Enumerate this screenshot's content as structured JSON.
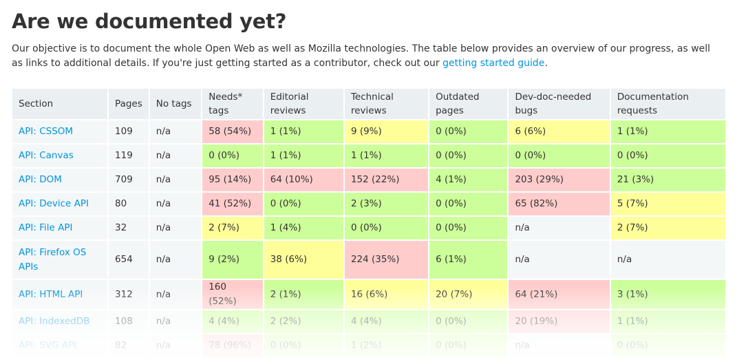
{
  "title": "Are we documented yet?",
  "intro": {
    "text_before": "Our objective is to document the whole Open Web as well as Mozilla technologies. The table below provides an overview of our progress, as well as links to additional details. If you're just getting started as a contributor, check out our ",
    "link_text": "getting started guide",
    "text_after": "."
  },
  "table": {
    "headers": [
      "Section",
      "Pages",
      "No tags",
      "Needs* tags",
      "Editorial reviews",
      "Technical reviews",
      "Outdated pages",
      "Dev-doc-needed bugs",
      "Documentation requests"
    ],
    "rows": [
      {
        "section": "API: CSSOM",
        "pages": "109",
        "notags": "n/a",
        "cells": [
          [
            "58 (54%)",
            "red"
          ],
          [
            "1 (1%)",
            "green"
          ],
          [
            "9 (9%)",
            "yellow"
          ],
          [
            "0 (0%)",
            "green"
          ],
          [
            "6 (6%)",
            "yellow"
          ],
          [
            "1 (1%)",
            "green"
          ]
        ]
      },
      {
        "section": "API: Canvas",
        "pages": "119",
        "notags": "n/a",
        "cells": [
          [
            "0 (0%)",
            "green"
          ],
          [
            "1 (1%)",
            "green"
          ],
          [
            "1 (1%)",
            "green"
          ],
          [
            "0 (0%)",
            "green"
          ],
          [
            "0 (0%)",
            "green"
          ],
          [
            "0 (0%)",
            "green"
          ]
        ]
      },
      {
        "section": "API: DOM",
        "pages": "709",
        "notags": "n/a",
        "cells": [
          [
            "95 (14%)",
            "red"
          ],
          [
            "64 (10%)",
            "red"
          ],
          [
            "152 (22%)",
            "red"
          ],
          [
            "4 (1%)",
            "green"
          ],
          [
            "203 (29%)",
            "red"
          ],
          [
            "21 (3%)",
            "green"
          ]
        ]
      },
      {
        "section": "API: Device API",
        "pages": "80",
        "notags": "n/a",
        "cells": [
          [
            "41 (52%)",
            "red"
          ],
          [
            "0 (0%)",
            "green"
          ],
          [
            "2 (3%)",
            "green"
          ],
          [
            "0 (0%)",
            "green"
          ],
          [
            "65 (82%)",
            "red"
          ],
          [
            "5 (7%)",
            "yellow"
          ]
        ]
      },
      {
        "section": "API: File API",
        "pages": "32",
        "notags": "n/a",
        "cells": [
          [
            "2 (7%)",
            "yellow"
          ],
          [
            "1 (4%)",
            "green"
          ],
          [
            "0 (0%)",
            "green"
          ],
          [
            "0 (0%)",
            "green"
          ],
          [
            "n/a",
            "plain"
          ],
          [
            "2 (7%)",
            "yellow"
          ]
        ]
      },
      {
        "section": "API: Firefox OS APIs",
        "pages": "654",
        "notags": "n/a",
        "tall": true,
        "cells": [
          [
            "9 (2%)",
            "green"
          ],
          [
            "38 (6%)",
            "yellow"
          ],
          [
            "224 (35%)",
            "red"
          ],
          [
            "6 (1%)",
            "green"
          ],
          [
            "n/a",
            "plain"
          ],
          [
            "n/a",
            "plain"
          ]
        ]
      },
      {
        "section": "API: HTML API",
        "pages": "312",
        "notags": "n/a",
        "cells": [
          [
            "160 (52%)",
            "red"
          ],
          [
            "2 (1%)",
            "green"
          ],
          [
            "16 (6%)",
            "yellow"
          ],
          [
            "20 (7%)",
            "yellow"
          ],
          [
            "64 (21%)",
            "red"
          ],
          [
            "3 (1%)",
            "green"
          ]
        ]
      },
      {
        "section": "API: IndexedDB",
        "pages": "108",
        "notags": "n/a",
        "cells": [
          [
            "4 (4%)",
            "green"
          ],
          [
            "2 (2%)",
            "green"
          ],
          [
            "4 (4%)",
            "green"
          ],
          [
            "0 (0%)",
            "green"
          ],
          [
            "20 (19%)",
            "red"
          ],
          [
            "1 (1%)",
            "green"
          ]
        ]
      },
      {
        "section": "API: SVG API",
        "pages": "82",
        "notags": "n/a",
        "cells": [
          [
            "78 (96%)",
            "red"
          ],
          [
            "0 (0%)",
            "green"
          ],
          [
            "1 (2%)",
            "green"
          ],
          [
            "0 (0%)",
            "green"
          ],
          [
            "n/a",
            "plain"
          ],
          [
            "0 (0%)",
            "green"
          ]
        ]
      }
    ]
  },
  "colors": {
    "link": "#0095dd",
    "red": "#ffcccc",
    "green": "#ccff99",
    "yellow": "#ffff99",
    "header_bg": "#eaeff2"
  }
}
